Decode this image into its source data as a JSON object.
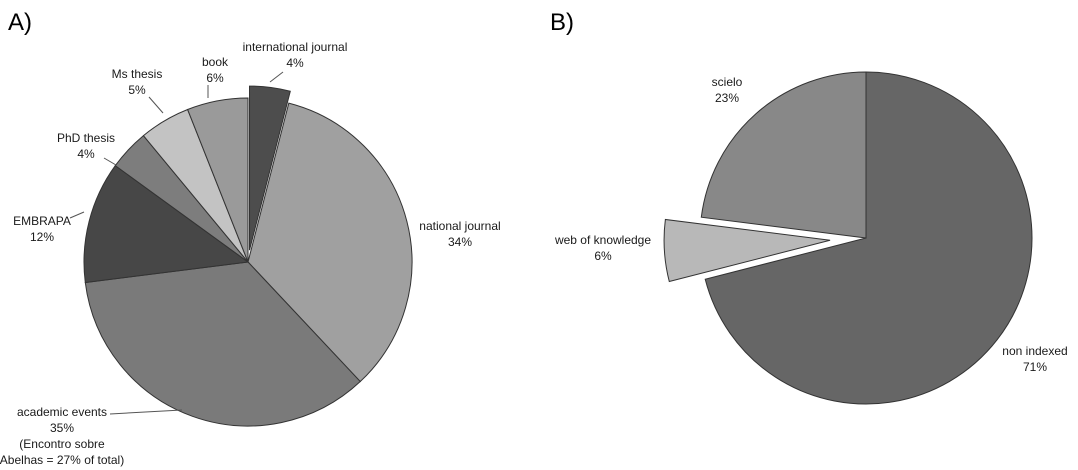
{
  "chart_data": [
    {
      "type": "pie",
      "panel": "A)",
      "slices": [
        {
          "label": [
            "international journal",
            "4%"
          ],
          "value": 4,
          "color": "#4d4d4d",
          "exploded": true
        },
        {
          "label": [
            "national journal",
            "34%"
          ],
          "value": 34,
          "color": "#a0a0a0",
          "exploded": false
        },
        {
          "label": [
            "academic events",
            "35%",
            "(Encontro sobre",
            "Abelhas = 27% of total)"
          ],
          "value": 35,
          "color": "#7a7a7a",
          "exploded": false
        },
        {
          "label": [
            "EMBRAPA",
            "12%"
          ],
          "value": 12,
          "color": "#474747",
          "exploded": false
        },
        {
          "label": [
            "PhD thesis",
            "4%"
          ],
          "value": 4,
          "color": "#7d7d7d",
          "exploded": false
        },
        {
          "label": [
            "Ms thesis",
            "5%"
          ],
          "value": 5,
          "color": "#c3c3c3",
          "exploded": false
        },
        {
          "label": [
            "book",
            "6%"
          ],
          "value": 6,
          "color": "#9a9a9a",
          "exploded": false
        }
      ]
    },
    {
      "type": "pie",
      "panel": "B)",
      "slices": [
        {
          "label": [
            "non indexed",
            "71%"
          ],
          "value": 71,
          "color": "#666666",
          "exploded": false
        },
        {
          "label": [
            "web of knowledge",
            "6%"
          ],
          "value": 6,
          "color": "#b8b8b8",
          "exploded": true
        },
        {
          "label": [
            "scielo",
            "23%"
          ],
          "value": 23,
          "color": "#888888",
          "exploded": false
        }
      ]
    }
  ]
}
